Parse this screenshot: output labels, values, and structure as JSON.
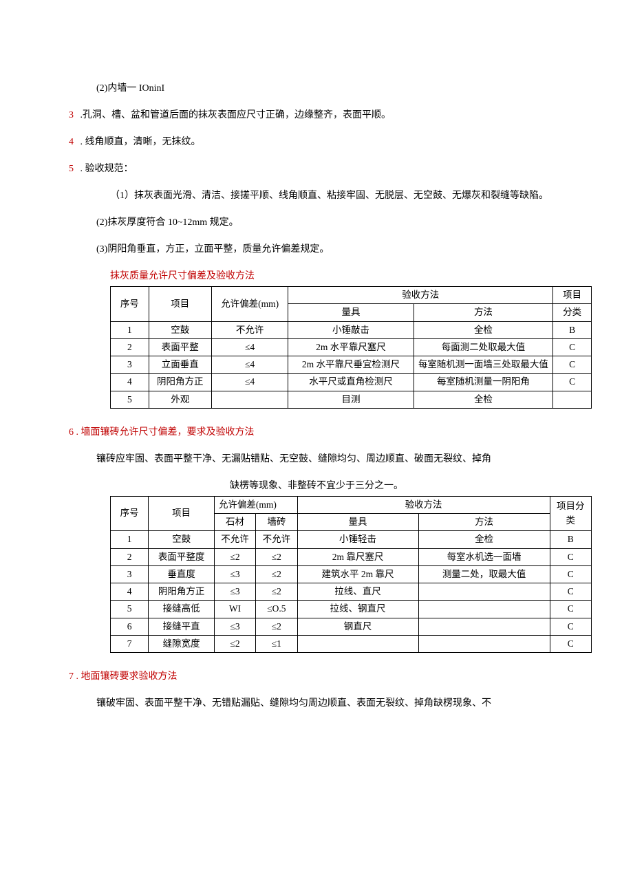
{
  "line_2": "(2)内墙一 IOninI",
  "item3": {
    "num": "3",
    "text": " .孔洞、槽、盆和管道后面的抹灰表面应尺寸正确，边缘整齐，表面平顺。"
  },
  "item4": {
    "num": "4",
    "text": " . 线角顺直，清晰，无抹纹。"
  },
  "item5": {
    "num": "5",
    "text": " . 验收规范："
  },
  "sub5_1": "（1）抹灰表面光滑、清洁、接搓平顺、线角顺直、粘接牢固、无脱层、无空鼓、无爆灰和裂缝等缺陷。",
  "sub5_2": "(2)抹灰厚度符合 10~12mm 规定。",
  "sub5_3": "(3)阴阳角垂直，方正，立面平整，质量允许偏差规定。",
  "table1": {
    "caption": "抹灰质量允许尺寸偏差及验收方法",
    "h": {
      "seq": "序号",
      "item": "项目",
      "tol": "允许偏差(mm)",
      "method": "验收方法",
      "tool": "量具",
      "way": "方法",
      "cat": "项目",
      "cat2": "分类"
    },
    "rows": [
      {
        "seq": "1",
        "item": "空鼓",
        "tol": "不允许",
        "tool": "小锤敲击",
        "way": "全检",
        "cat": "B"
      },
      {
        "seq": "2",
        "item": "表面平整",
        "tol": "≤4",
        "tool": "2m 水平靠尺塞尺",
        "way": "每面测二处取最大值",
        "cat": "C"
      },
      {
        "seq": "3",
        "item": "立面垂直",
        "tol": "≤4",
        "tool": "2m 水平靠尺垂宜检测尺",
        "way": "每室随机测一面墙三处取最大值",
        "cat": "C"
      },
      {
        "seq": "4",
        "item": "阴阳角方正",
        "tol": "≤4",
        "tool": "水平尺或直角检测尺",
        "way": "每室随机测量一阴阳角",
        "cat": "C"
      },
      {
        "seq": "5",
        "item": "外观",
        "tol": "",
        "tool": "目测",
        "way": "全检",
        "cat": ""
      }
    ]
  },
  "item6": {
    "num": "6",
    "text": " . 墙面镶砖允许尺寸偏差，要求及验收方法"
  },
  "desc6": "镶砖应牢固、表面平整干净、无漏贴错贴、无空鼓、缝隙均匀、周边顺直、破面无裂纹、掉角",
  "center6": "缺楞等现象、非整砖不宜少于三分之一。",
  "table2": {
    "h": {
      "seq": "序号",
      "item": "项目",
      "tol": "允许偏差(mm)",
      "stone": "石材",
      "tile": "墙砖",
      "method": "验收方法",
      "tool": "量具",
      "way": "方法",
      "cat": "项目分类"
    },
    "rows": [
      {
        "seq": "1",
        "item": "空鼓",
        "stone": "不允许",
        "tile": "不允许",
        "tool": "小锤轻击",
        "way": "全检",
        "cat": "B"
      },
      {
        "seq": "2",
        "item": "表面平整度",
        "stone": "≤2",
        "tile": "≤2",
        "tool": "2m 靠尺塞尺",
        "way": "每室水机选一面墙",
        "cat": "C"
      },
      {
        "seq": "3",
        "item": "垂直度",
        "stone": "≤3",
        "tile": "≤2",
        "tool": "建筑水平 2m 靠尺",
        "way": "测量二处，取最大值",
        "cat": "C"
      },
      {
        "seq": "4",
        "item": "阴阳角方正",
        "stone": "≤3",
        "tile": "≤2",
        "tool": "拉线、直尺",
        "way": "",
        "cat": "C"
      },
      {
        "seq": "5",
        "item": "接缝高低",
        "stone": "WI",
        "tile": "≤O.5",
        "tool": "拉线、钢直尺",
        "way": "",
        "cat": "C"
      },
      {
        "seq": "6",
        "item": "接缝平直",
        "stone": "≤3",
        "tile": "≤2",
        "tool": "钢直尺",
        "way": "",
        "cat": "C"
      },
      {
        "seq": "7",
        "item": "缝隙宽度",
        "stone": "≤2",
        "tile": "≤1",
        "tool": "",
        "way": "",
        "cat": "C"
      }
    ]
  },
  "item7": {
    "num": "7",
    "text": " . 地面镶砖要求验收方法"
  },
  "desc7": "镶破牢固、表面平整干净、无错贴漏贴、缝隙均匀周边顺直、表面无裂纹、掉角缺楞现象、不"
}
